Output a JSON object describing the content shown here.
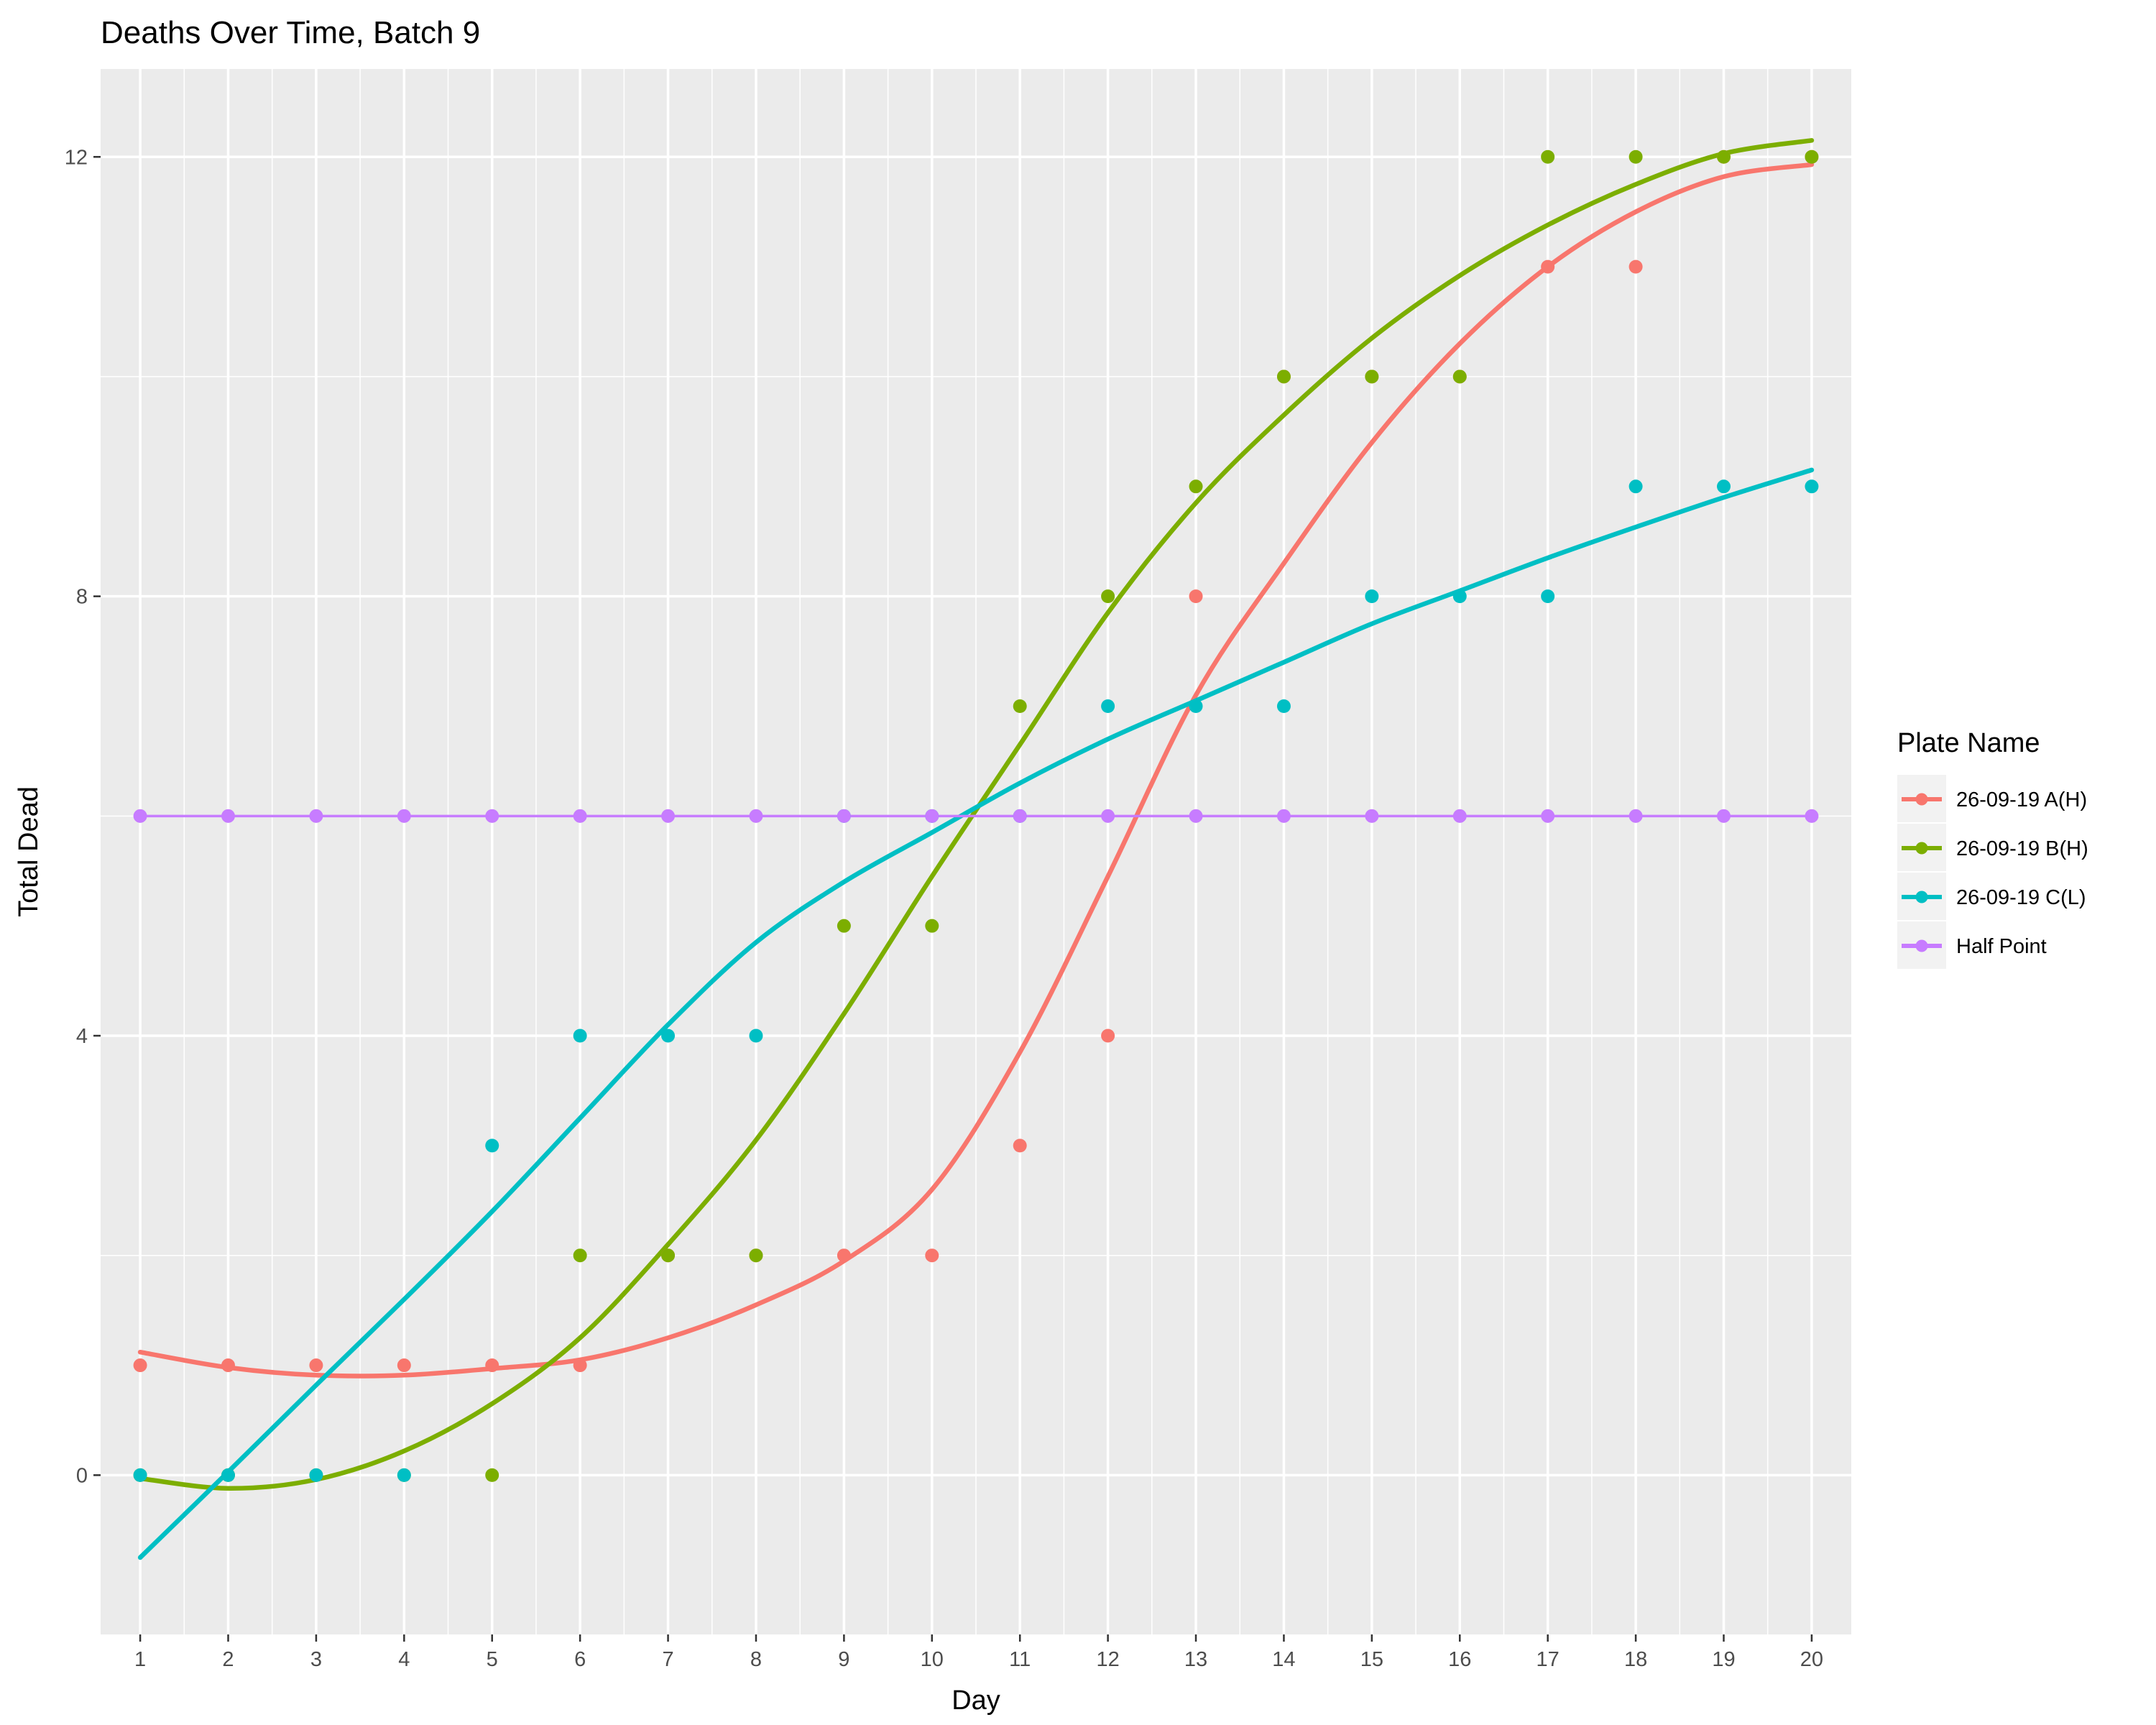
{
  "chart_data": {
    "type": "scatter",
    "title": "Deaths Over Time, Batch 9",
    "xlabel": "Day",
    "ylabel": "Total Dead",
    "x_ticks": [
      1,
      2,
      3,
      4,
      5,
      6,
      7,
      8,
      9,
      10,
      11,
      12,
      13,
      14,
      15,
      16,
      17,
      18,
      19,
      20
    ],
    "y_ticks": [
      0,
      4,
      8,
      12
    ],
    "xlim": [
      0.55,
      20.45
    ],
    "ylim": [
      -1.45,
      12.8
    ],
    "grid": true,
    "legend": {
      "title": "Plate Name",
      "position": "right"
    },
    "series": [
      {
        "name": "26-09-19 A(H)",
        "color": "#F8766D",
        "points": [
          {
            "x": 1,
            "y": 1
          },
          {
            "x": 2,
            "y": 1
          },
          {
            "x": 3,
            "y": 1
          },
          {
            "x": 4,
            "y": 1
          },
          {
            "x": 5,
            "y": 1
          },
          {
            "x": 6,
            "y": 1
          },
          {
            "x": 7,
            "y": 2
          },
          {
            "x": 8,
            "y": 2
          },
          {
            "x": 9,
            "y": 2
          },
          {
            "x": 10,
            "y": 2
          },
          {
            "x": 11,
            "y": 3
          },
          {
            "x": 12,
            "y": 4
          },
          {
            "x": 13,
            "y": 8
          },
          {
            "x": 14,
            "y": 10
          },
          {
            "x": 15,
            "y": 10
          },
          {
            "x": 16,
            "y": 10
          },
          {
            "x": 17,
            "y": 11
          },
          {
            "x": 18,
            "y": 11
          },
          {
            "x": 19,
            "y": 12
          },
          {
            "x": 20,
            "y": 12
          }
        ],
        "fit": [
          {
            "x": 1,
            "y": 1.12
          },
          {
            "x": 2,
            "y": 0.98
          },
          {
            "x": 3,
            "y": 0.91
          },
          {
            "x": 4,
            "y": 0.91
          },
          {
            "x": 5,
            "y": 0.97
          },
          {
            "x": 6,
            "y": 1.05
          },
          {
            "x": 7,
            "y": 1.25
          },
          {
            "x": 8,
            "y": 1.55
          },
          {
            "x": 9,
            "y": 1.95
          },
          {
            "x": 10,
            "y": 2.6
          },
          {
            "x": 11,
            "y": 3.85
          },
          {
            "x": 12,
            "y": 5.45
          },
          {
            "x": 13,
            "y": 7.1
          },
          {
            "x": 14,
            "y": 8.3
          },
          {
            "x": 15,
            "y": 9.4
          },
          {
            "x": 16,
            "y": 10.3
          },
          {
            "x": 17,
            "y": 11.0
          },
          {
            "x": 18,
            "y": 11.5
          },
          {
            "x": 19,
            "y": 11.82
          },
          {
            "x": 20,
            "y": 11.93
          }
        ]
      },
      {
        "name": "26-09-19 B(H)",
        "color": "#7CAE00",
        "points": [
          {
            "x": 1,
            "y": 0
          },
          {
            "x": 2,
            "y": 0
          },
          {
            "x": 3,
            "y": 0
          },
          {
            "x": 4,
            "y": 0
          },
          {
            "x": 5,
            "y": 0
          },
          {
            "x": 6,
            "y": 2
          },
          {
            "x": 7,
            "y": 2
          },
          {
            "x": 8,
            "y": 2
          },
          {
            "x": 9,
            "y": 5
          },
          {
            "x": 10,
            "y": 5
          },
          {
            "x": 11,
            "y": 7
          },
          {
            "x": 12,
            "y": 8
          },
          {
            "x": 13,
            "y": 9
          },
          {
            "x": 14,
            "y": 10
          },
          {
            "x": 15,
            "y": 10
          },
          {
            "x": 16,
            "y": 10
          },
          {
            "x": 17,
            "y": 12
          },
          {
            "x": 18,
            "y": 12
          },
          {
            "x": 19,
            "y": 12
          },
          {
            "x": 20,
            "y": 12
          }
        ],
        "fit": [
          {
            "x": 1,
            "y": -0.03
          },
          {
            "x": 2,
            "y": -0.12
          },
          {
            "x": 3,
            "y": -0.04
          },
          {
            "x": 4,
            "y": 0.22
          },
          {
            "x": 5,
            "y": 0.65
          },
          {
            "x": 6,
            "y": 1.25
          },
          {
            "x": 7,
            "y": 2.1
          },
          {
            "x": 8,
            "y": 3.05
          },
          {
            "x": 9,
            "y": 4.2
          },
          {
            "x": 10,
            "y": 5.45
          },
          {
            "x": 11,
            "y": 6.65
          },
          {
            "x": 12,
            "y": 7.85
          },
          {
            "x": 13,
            "y": 8.85
          },
          {
            "x": 14,
            "y": 9.65
          },
          {
            "x": 15,
            "y": 10.35
          },
          {
            "x": 16,
            "y": 10.92
          },
          {
            "x": 17,
            "y": 11.38
          },
          {
            "x": 18,
            "y": 11.75
          },
          {
            "x": 19,
            "y": 12.03
          },
          {
            "x": 20,
            "y": 12.15
          }
        ]
      },
      {
        "name": "26-09-19 C(L)",
        "color": "#00BFC4",
        "points": [
          {
            "x": 1,
            "y": 0
          },
          {
            "x": 2,
            "y": 0
          },
          {
            "x": 3,
            "y": 0
          },
          {
            "x": 4,
            "y": 0
          },
          {
            "x": 5,
            "y": 3
          },
          {
            "x": 6,
            "y": 4
          },
          {
            "x": 7,
            "y": 4
          },
          {
            "x": 8,
            "y": 4
          },
          {
            "x": 9,
            "y": 6
          },
          {
            "x": 10,
            "y": 6
          },
          {
            "x": 11,
            "y": 6
          },
          {
            "x": 12,
            "y": 7
          },
          {
            "x": 13,
            "y": 7
          },
          {
            "x": 14,
            "y": 7
          },
          {
            "x": 15,
            "y": 8
          },
          {
            "x": 16,
            "y": 8
          },
          {
            "x": 17,
            "y": 8
          },
          {
            "x": 18,
            "y": 9
          },
          {
            "x": 19,
            "y": 9
          },
          {
            "x": 20,
            "y": 9
          }
        ],
        "fit": [
          {
            "x": 1,
            "y": -0.75
          },
          {
            "x": 2,
            "y": 0.03
          },
          {
            "x": 3,
            "y": 0.82
          },
          {
            "x": 4,
            "y": 1.6
          },
          {
            "x": 5,
            "y": 2.4
          },
          {
            "x": 6,
            "y": 3.25
          },
          {
            "x": 7,
            "y": 4.1
          },
          {
            "x": 8,
            "y": 4.85
          },
          {
            "x": 9,
            "y": 5.4
          },
          {
            "x": 10,
            "y": 5.85
          },
          {
            "x": 11,
            "y": 6.3
          },
          {
            "x": 12,
            "y": 6.7
          },
          {
            "x": 13,
            "y": 7.05
          },
          {
            "x": 14,
            "y": 7.4
          },
          {
            "x": 15,
            "y": 7.75
          },
          {
            "x": 16,
            "y": 8.05
          },
          {
            "x": 17,
            "y": 8.35
          },
          {
            "x": 18,
            "y": 8.63
          },
          {
            "x": 19,
            "y": 8.9
          },
          {
            "x": 20,
            "y": 9.15
          }
        ]
      },
      {
        "name": "Half Point",
        "color": "#C77CFF",
        "points": [
          {
            "x": 1,
            "y": 6
          },
          {
            "x": 2,
            "y": 6
          },
          {
            "x": 3,
            "y": 6
          },
          {
            "x": 4,
            "y": 6
          },
          {
            "x": 5,
            "y": 6
          },
          {
            "x": 6,
            "y": 6
          },
          {
            "x": 7,
            "y": 6
          },
          {
            "x": 8,
            "y": 6
          },
          {
            "x": 9,
            "y": 6
          },
          {
            "x": 10,
            "y": 6
          },
          {
            "x": 11,
            "y": 6
          },
          {
            "x": 12,
            "y": 6
          },
          {
            "x": 13,
            "y": 6
          },
          {
            "x": 14,
            "y": 6
          },
          {
            "x": 15,
            "y": 6
          },
          {
            "x": 16,
            "y": 6
          },
          {
            "x": 17,
            "y": 6
          },
          {
            "x": 18,
            "y": 6
          },
          {
            "x": 19,
            "y": 6
          },
          {
            "x": 20,
            "y": 6
          }
        ],
        "fit": [
          {
            "x": 1,
            "y": 6
          },
          {
            "x": 20,
            "y": 6
          }
        ]
      }
    ]
  }
}
